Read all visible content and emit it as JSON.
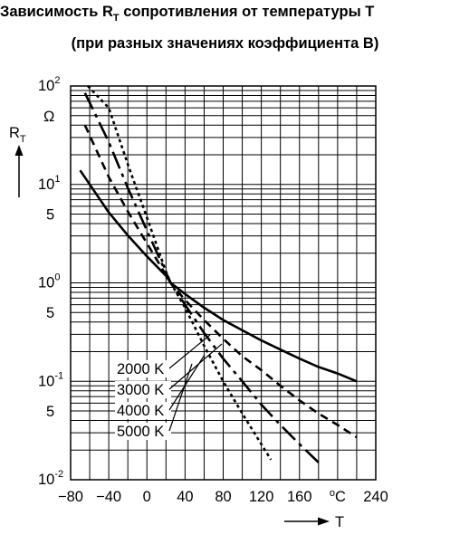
{
  "title": {
    "prefix": "Зависимость R",
    "subscript": "T",
    "suffix": " сопротивления  от температуры T"
  },
  "subtitle": "(при разных значениях коэффициента B)",
  "chart_data": {
    "type": "line",
    "xlabel": "T",
    "ylabel": "RT",
    "x_unit": "°C",
    "y_unit": "Ω",
    "xscale": "linear",
    "yscale": "log",
    "xlim": [
      -80,
      240
    ],
    "ylim": [
      0.01,
      100
    ],
    "x_ticks": [
      -80,
      -40,
      0,
      40,
      80,
      120,
      160,
      200,
      240
    ],
    "x_tick_labels": [
      "−80",
      "−40",
      "0",
      "40",
      "80",
      "120",
      "160",
      "°C",
      "240"
    ],
    "y_tick_labels": [
      {
        "value": 100,
        "base": "10",
        "exp": "2"
      },
      {
        "value": 10,
        "base": "10",
        "exp": "1"
      },
      {
        "value": 5,
        "base": "5",
        "exp": ""
      },
      {
        "value": 1,
        "base": "10",
        "exp": "0"
      },
      {
        "value": 0.5,
        "base": "5",
        "exp": ""
      },
      {
        "value": 0.1,
        "base": "10",
        "exp": "-1"
      },
      {
        "value": 0.05,
        "base": "5",
        "exp": ""
      },
      {
        "value": 0.01,
        "base": "10",
        "exp": "-2"
      }
    ],
    "grid": true,
    "series": [
      {
        "name": "2000 K",
        "style": "solid",
        "B": 2000,
        "x": [
          -70,
          -40,
          -20,
          0,
          20,
          25,
          40,
          60,
          80,
          100,
          120,
          140,
          160,
          180,
          200,
          220
        ],
        "y": [
          13.9,
          5.2,
          3.03,
          1.86,
          1.18,
          1.0,
          0.77,
          0.56,
          0.42,
          0.33,
          0.26,
          0.21,
          0.17,
          0.14,
          0.12,
          0.1
        ]
      },
      {
        "name": "3000 K",
        "style": "dashed",
        "B": 3000,
        "x": [
          -65,
          -40,
          -20,
          0,
          20,
          25,
          40,
          60,
          80,
          100,
          120,
          140,
          160,
          180,
          200,
          220
        ],
        "y": [
          40,
          11.9,
          5.3,
          2.52,
          1.2,
          1.0,
          0.67,
          0.42,
          0.27,
          0.18,
          0.13,
          0.09,
          0.064,
          0.047,
          0.036,
          0.027
        ]
      },
      {
        "name": "4000 K",
        "style": "dash-dot",
        "B": 4000,
        "x": [
          -65,
          -40,
          -20,
          0,
          20,
          25,
          40,
          60,
          80,
          100,
          120,
          140,
          160,
          180
        ],
        "y": [
          85,
          27,
          9.2,
          3.4,
          1.27,
          1.0,
          0.6,
          0.31,
          0.17,
          0.1,
          0.058,
          0.036,
          0.023,
          0.015
        ]
      },
      {
        "name": "5000 K",
        "style": "dotted",
        "B": 5000,
        "x": [
          -62,
          -40,
          -20,
          0,
          20,
          25,
          40,
          60,
          80,
          100,
          120,
          130
        ],
        "y": [
          100,
          60,
          16,
          4.6,
          1.3,
          1.0,
          0.56,
          0.23,
          0.1,
          0.047,
          0.023,
          0.016
        ]
      }
    ],
    "legend_labels": [
      "2000 K",
      "3000 K",
      "4000 K",
      "5000 K"
    ]
  },
  "colors": {
    "line": "#000000",
    "grid": "#000000",
    "background": "#ffffff"
  }
}
